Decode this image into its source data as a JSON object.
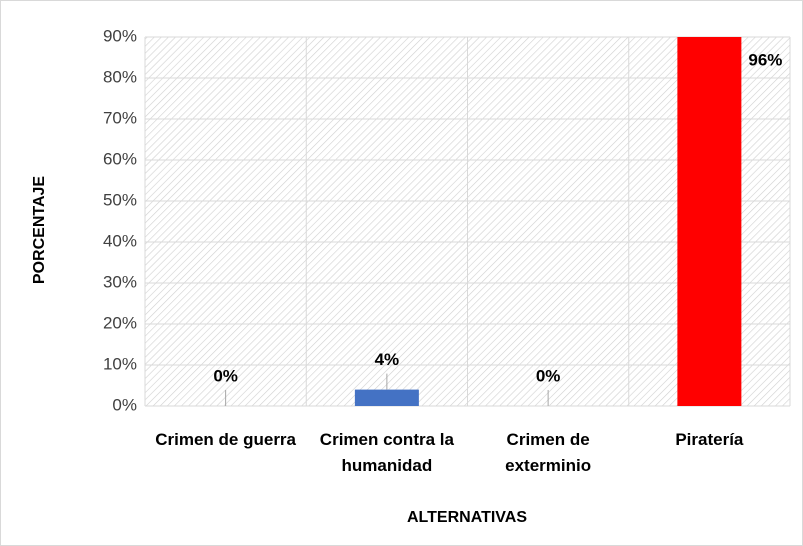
{
  "chart_data": {
    "type": "bar",
    "x_label": "ALTERNATIVAS",
    "y_label": "PORCENTAJE",
    "categories": [
      "Crimen de guerra",
      "Crimen contra la humanidad",
      "Crimen de exterminio",
      "Piratería"
    ],
    "values": [
      0,
      4,
      0,
      96
    ],
    "value_labels": [
      "0%",
      "4%",
      "0%",
      "96%"
    ],
    "colors": [
      "#4472c4",
      "#4472c4",
      "#4472c4",
      "#ff0000"
    ],
    "ylim": [
      0,
      90
    ],
    "yticks": [
      {
        "value": 0,
        "label": "0%"
      },
      {
        "value": 10,
        "label": "10%"
      },
      {
        "value": 20,
        "label": "20%"
      },
      {
        "value": 30,
        "label": "30%"
      },
      {
        "value": 40,
        "label": "40%"
      },
      {
        "value": 50,
        "label": "50%"
      },
      {
        "value": 60,
        "label": "60%"
      },
      {
        "value": 70,
        "label": "70%"
      },
      {
        "value": 80,
        "label": "80%"
      },
      {
        "value": 90,
        "label": "90%"
      }
    ],
    "grid": true
  }
}
